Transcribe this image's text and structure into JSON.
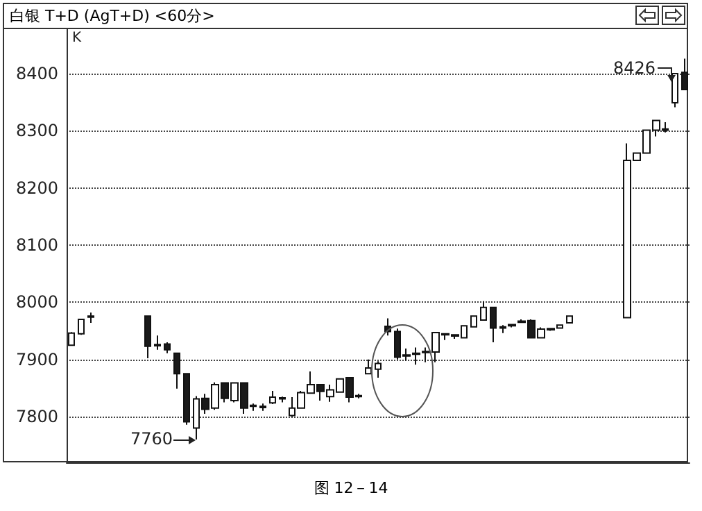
{
  "chart_data": {
    "type": "candlestick",
    "title": "白银  T+D (AgT+D) <60分>",
    "categories": [
      null,
      null,
      null,
      null,
      null,
      null,
      null,
      null,
      null,
      null,
      null,
      null,
      null,
      null,
      null,
      null,
      null,
      null,
      null,
      null,
      null,
      null,
      null,
      null,
      null,
      null,
      null,
      null,
      null,
      null,
      null,
      null,
      null,
      null,
      null,
      null,
      null,
      null,
      null,
      null,
      null,
      null,
      null,
      null,
      null,
      null,
      null,
      null,
      null,
      null,
      null,
      null,
      null,
      null,
      null,
      null,
      null,
      null,
      null,
      null,
      null,
      null,
      null,
      null,
      null
    ],
    "ohlc": [
      [
        7925,
        7948,
        7924,
        7946
      ],
      [
        7945,
        7971,
        7943,
        7970
      ],
      [
        7974,
        7982,
        7964,
        7976
      ],
      null,
      null,
      null,
      null,
      null,
      [
        7976,
        7976,
        7902,
        7923
      ],
      [
        7924,
        7942,
        7917,
        7926
      ],
      [
        7927,
        7930,
        7911,
        7917
      ],
      [
        7911,
        7911,
        7849,
        7875
      ],
      [
        7875,
        7875,
        7786,
        7791
      ],
      [
        7780,
        7836,
        7760,
        7831
      ],
      [
        7832,
        7840,
        7805,
        7813
      ],
      [
        7815,
        7860,
        7812,
        7856
      ],
      [
        7859,
        7859,
        7825,
        7832
      ],
      [
        7828,
        7859,
        7825,
        7859
      ],
      [
        7859,
        7859,
        7805,
        7815
      ],
      [
        7818,
        7823,
        7810,
        7820
      ],
      [
        7816,
        7823,
        7810,
        7818
      ],
      [
        7824,
        7845,
        7822,
        7834
      ],
      [
        7831,
        7835,
        7825,
        7833
      ],
      [
        7802,
        7834,
        7800,
        7815
      ],
      [
        7815,
        7845,
        7815,
        7842
      ],
      [
        7841,
        7879,
        7841,
        7856
      ],
      [
        7856,
        7856,
        7828,
        7844
      ],
      [
        7835,
        7856,
        7826,
        7847
      ],
      [
        7843,
        7866,
        7843,
        7866
      ],
      [
        7868,
        7868,
        7825,
        7834
      ],
      [
        7835,
        7840,
        7832,
        7837
      ],
      [
        7875,
        7900,
        7875,
        7885
      ],
      [
        7883,
        7897,
        7868,
        7893
      ],
      [
        7958,
        7972,
        7942,
        7949
      ],
      [
        7949,
        7954,
        7900,
        7904
      ],
      [
        7906,
        7919,
        7898,
        7908
      ],
      [
        7909,
        7921,
        7891,
        7911
      ],
      [
        7912,
        7921,
        7895,
        7914
      ],
      [
        7913,
        7947,
        7895,
        7947
      ],
      [
        7943,
        7946,
        7934,
        7945
      ],
      [
        7941,
        7944,
        7936,
        7943
      ],
      [
        7938,
        7959,
        7938,
        7959
      ],
      [
        7957,
        7976,
        7957,
        7976
      ],
      [
        7969,
        8002,
        7969,
        7991
      ],
      [
        7991,
        7991,
        7930,
        7955
      ],
      [
        7955,
        7960,
        7946,
        7957
      ],
      [
        7959,
        7962,
        7956,
        7961
      ],
      [
        7965,
        7970,
        7964,
        7967
      ],
      [
        7968,
        7970,
        7938,
        7938
      ],
      [
        7938,
        7956,
        7938,
        7953
      ],
      [
        7952,
        7955,
        7950,
        7954
      ],
      [
        7955,
        7960,
        7955,
        7960
      ],
      [
        7964,
        7976,
        7964,
        7976
      ],
      null,
      null,
      null,
      null,
      null,
      [
        7973,
        8278,
        7973,
        8248
      ],
      [
        8248,
        8261,
        8248,
        8261
      ],
      [
        8261,
        8301,
        8261,
        8301
      ],
      [
        8301,
        8318,
        8290,
        8318
      ],
      [
        8301,
        8315,
        8297,
        8303
      ],
      [
        8349,
        8400,
        8341,
        8400
      ],
      [
        8402,
        8426,
        8372,
        8372
      ]
    ],
    "colors": [
      "#ffffff",
      "#ffffff",
      "#ffffff",
      null,
      null,
      null,
      null,
      null,
      "#1a1a1a",
      "#ffffff",
      "#1a1a1a",
      "#1a1a1a",
      "#1a1a1a",
      "#ffffff",
      "#1a1a1a",
      "#ffffff",
      "#1a1a1a",
      "#ffffff",
      "#1a1a1a",
      "#ffffff",
      "#ffffff",
      "#ffffff",
      "#ffffff",
      "#ffffff",
      "#ffffff",
      "#ffffff",
      "#1a1a1a",
      "#ffffff",
      "#ffffff",
      "#1a1a1a",
      "#ffffff",
      "#ffffff",
      "#ffffff",
      "#1a1a1a",
      "#1a1a1a",
      "#ffffff",
      "#ffffff",
      "#ffffff",
      "#ffffff",
      "#ffffff",
      "#ffffff",
      "#ffffff",
      "#ffffff",
      "#ffffff",
      "#1a1a1a",
      "#ffffff",
      "#ffffff",
      "#ffffff",
      "#1a1a1a",
      "#ffffff",
      "#ffffff",
      "#ffffff",
      "#ffffff",
      null,
      null,
      null,
      null,
      null,
      "#ffffff",
      "#ffffff",
      "#ffffff",
      "#ffffff",
      "#ffffff",
      "#ffffff",
      "#1a1a1a"
    ],
    "ylim": [
      7720,
      8480
    ],
    "yticks": [
      7800,
      7900,
      8000,
      8100,
      8200,
      8300,
      8400
    ],
    "grid": "y",
    "annotations": [
      "K",
      "7760",
      "8426",
      "图 12－14"
    ]
  }
}
